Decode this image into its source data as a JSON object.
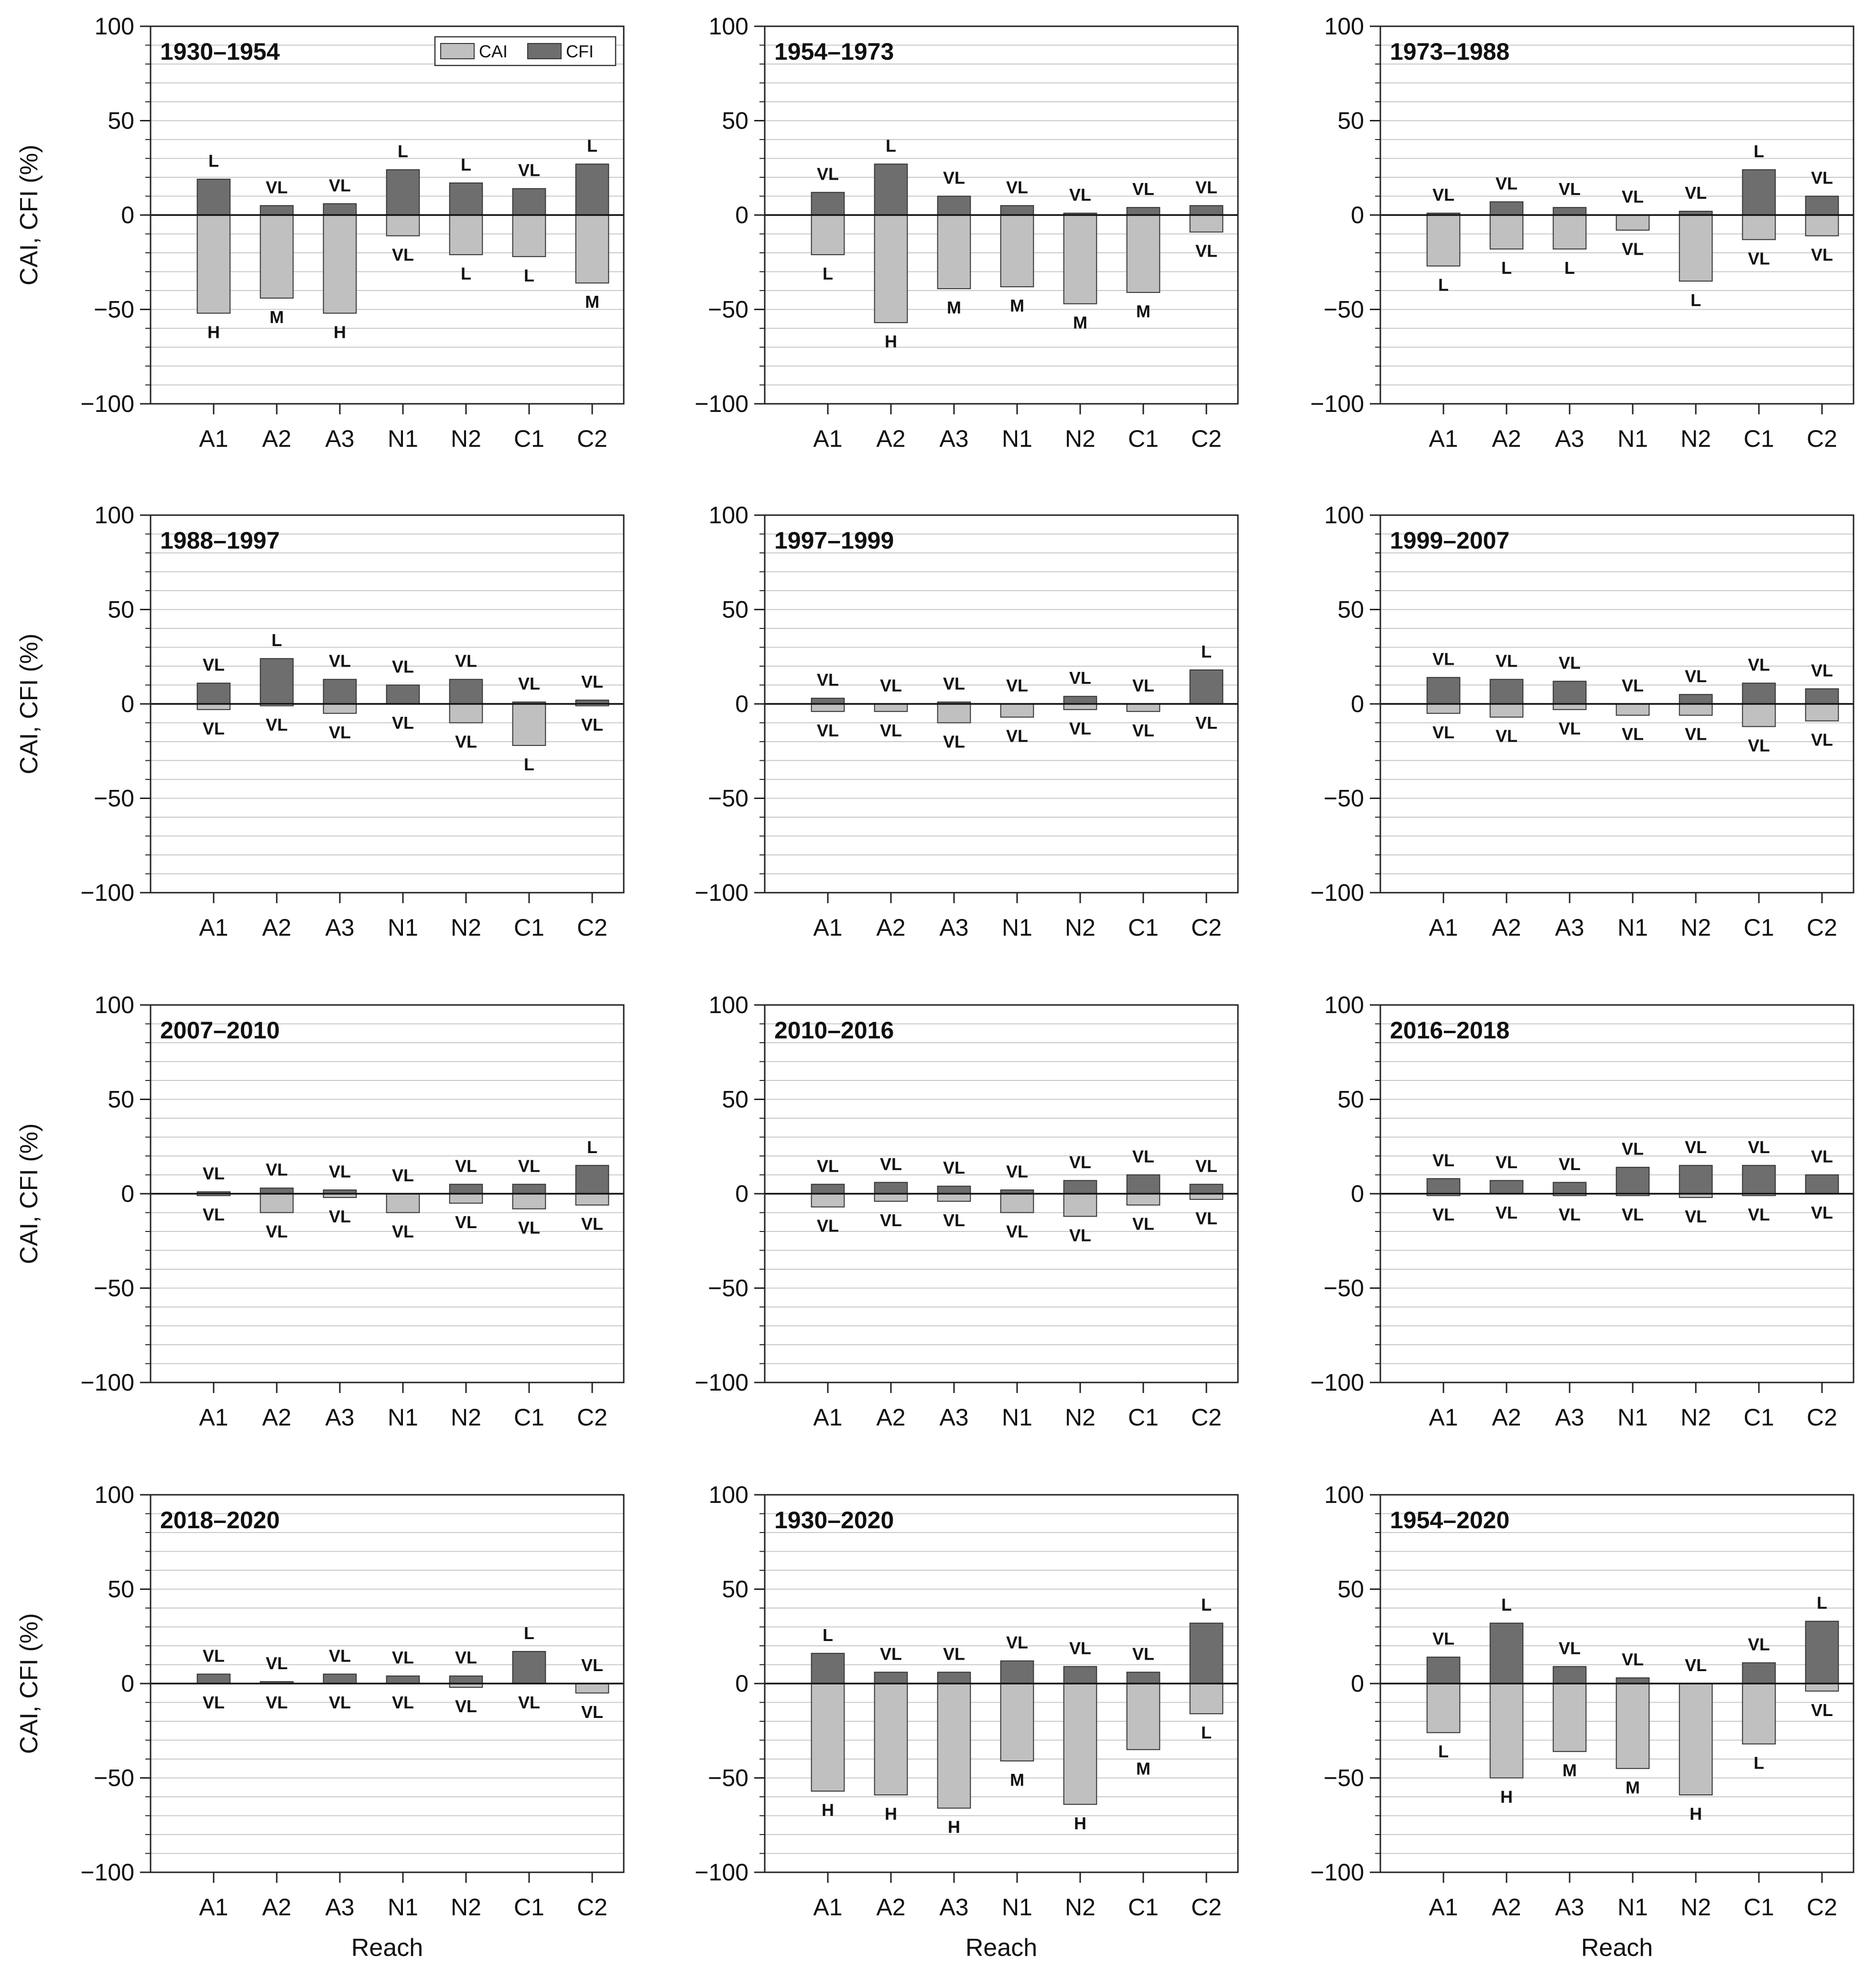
{
  "chart_data": {
    "type": "bar",
    "layout": "4x3 grid of small multiples",
    "xlabel": "Reach",
    "ylabel": "CAI, CFI (%)",
    "ylim": [
      -100,
      100
    ],
    "yticks": [
      -100,
      -50,
      0,
      50,
      100
    ],
    "ytick_labels": [
      "−100",
      "−50",
      "0",
      "50",
      "100"
    ],
    "minor_gridline_step": 10,
    "grid": true,
    "categories": [
      "A1",
      "A2",
      "A3",
      "N1",
      "N2",
      "C1",
      "C2"
    ],
    "legend": {
      "placement": "top-right of first panel",
      "entries": [
        {
          "name": "CAI",
          "color": "#c0c0c0"
        },
        {
          "name": "CFI",
          "color": "#6e6e6e"
        }
      ]
    },
    "colors": {
      "CAI": "#c0c0c0",
      "CFI": "#6e6e6e",
      "grid": "#c8c8c8",
      "axis": "#222222"
    },
    "panels": [
      {
        "title": "1930–1954",
        "series": [
          {
            "name": "CFI",
            "values": [
              19,
              5,
              6,
              24,
              17,
              14,
              27
            ],
            "labels": [
              "L",
              "VL",
              "VL",
              "L",
              "L",
              "VL",
              "L"
            ]
          },
          {
            "name": "CAI",
            "values": [
              -52,
              -44,
              -52,
              -11,
              -21,
              -22,
              -36
            ],
            "labels": [
              "H",
              "M",
              "H",
              "VL",
              "L",
              "L",
              "M"
            ]
          }
        ]
      },
      {
        "title": "1954–1973",
        "series": [
          {
            "name": "CFI",
            "values": [
              12,
              27,
              10,
              5,
              1,
              4,
              5
            ],
            "labels": [
              "VL",
              "L",
              "VL",
              "VL",
              "VL",
              "VL",
              "VL"
            ]
          },
          {
            "name": "CAI",
            "values": [
              -21,
              -57,
              -39,
              -38,
              -47,
              -41,
              -9
            ],
            "labels": [
              "L",
              "H",
              "M",
              "M",
              "M",
              "M",
              "VL"
            ]
          }
        ]
      },
      {
        "title": "1973–1988",
        "series": [
          {
            "name": "CFI",
            "values": [
              1,
              7,
              4,
              0,
              2,
              24,
              10
            ],
            "labels": [
              "VL",
              "VL",
              "VL",
              "VL",
              "VL",
              "L",
              "VL"
            ]
          },
          {
            "name": "CAI",
            "values": [
              -27,
              -18,
              -18,
              -8,
              -35,
              -13,
              -11
            ],
            "labels": [
              "L",
              "L",
              "L",
              "VL",
              "L",
              "VL",
              "VL"
            ]
          }
        ]
      },
      {
        "title": "1988–1997",
        "series": [
          {
            "name": "CFI",
            "values": [
              11,
              24,
              13,
              10,
              13,
              1,
              2
            ],
            "labels": [
              "VL",
              "L",
              "VL",
              "VL",
              "VL",
              "VL",
              "VL"
            ]
          },
          {
            "name": "CAI",
            "values": [
              -3,
              -1,
              -5,
              0,
              -10,
              -22,
              -1
            ],
            "labels": [
              "VL",
              "VL",
              "VL",
              "VL",
              "VL",
              "L",
              "VL"
            ]
          }
        ]
      },
      {
        "title": "1997–1999",
        "series": [
          {
            "name": "CFI",
            "values": [
              3,
              0,
              1,
              0,
              4,
              0,
              18
            ],
            "labels": [
              "VL",
              "VL",
              "VL",
              "VL",
              "VL",
              "VL",
              "L"
            ]
          },
          {
            "name": "CAI",
            "values": [
              -4,
              -4,
              -10,
              -7,
              -3,
              -4,
              0
            ],
            "labels": [
              "VL",
              "VL",
              "VL",
              "VL",
              "VL",
              "VL",
              "VL"
            ]
          }
        ]
      },
      {
        "title": "1999–2007",
        "series": [
          {
            "name": "CFI",
            "values": [
              14,
              13,
              12,
              0,
              5,
              11,
              8
            ],
            "labels": [
              "VL",
              "VL",
              "VL",
              "VL",
              "VL",
              "VL",
              "VL"
            ]
          },
          {
            "name": "CAI",
            "values": [
              -5,
              -7,
              -3,
              -6,
              -6,
              -12,
              -9
            ],
            "labels": [
              "VL",
              "VL",
              "VL",
              "VL",
              "VL",
              "VL",
              "VL"
            ]
          }
        ]
      },
      {
        "title": "2007–2010",
        "series": [
          {
            "name": "CFI",
            "values": [
              1,
              3,
              2,
              0,
              5,
              5,
              15
            ],
            "labels": [
              "VL",
              "VL",
              "VL",
              "VL",
              "VL",
              "VL",
              "L"
            ]
          },
          {
            "name": "CAI",
            "values": [
              -1,
              -10,
              -2,
              -10,
              -5,
              -8,
              -6
            ],
            "labels": [
              "VL",
              "VL",
              "VL",
              "VL",
              "VL",
              "VL",
              "VL"
            ]
          }
        ]
      },
      {
        "title": "2010–2016",
        "series": [
          {
            "name": "CFI",
            "values": [
              5,
              6,
              4,
              2,
              7,
              10,
              5
            ],
            "labels": [
              "VL",
              "VL",
              "VL",
              "VL",
              "VL",
              "VL",
              "VL"
            ]
          },
          {
            "name": "CAI",
            "values": [
              -7,
              -4,
              -4,
              -10,
              -12,
              -6,
              -3
            ],
            "labels": [
              "VL",
              "VL",
              "VL",
              "VL",
              "VL",
              "VL",
              "VL"
            ]
          }
        ]
      },
      {
        "title": "2016–2018",
        "series": [
          {
            "name": "CFI",
            "values": [
              8,
              7,
              6,
              14,
              15,
              15,
              10
            ],
            "labels": [
              "VL",
              "VL",
              "VL",
              "VL",
              "VL",
              "VL",
              "VL"
            ]
          },
          {
            "name": "CAI",
            "values": [
              -1,
              0,
              -1,
              -1,
              -2,
              -1,
              0
            ],
            "labels": [
              "VL",
              "VL",
              "VL",
              "VL",
              "VL",
              "VL",
              "VL"
            ]
          }
        ]
      },
      {
        "title": "2018–2020",
        "series": [
          {
            "name": "CFI",
            "values": [
              5,
              1,
              5,
              4,
              4,
              17,
              0
            ],
            "labels": [
              "VL",
              "VL",
              "VL",
              "VL",
              "VL",
              "L",
              "VL"
            ]
          },
          {
            "name": "CAI",
            "values": [
              0,
              0,
              0,
              0,
              -2,
              0,
              -5
            ],
            "labels": [
              "VL",
              "VL",
              "VL",
              "VL",
              "VL",
              "VL",
              "VL"
            ]
          }
        ]
      },
      {
        "title": "1930–2020",
        "series": [
          {
            "name": "CFI",
            "values": [
              16,
              6,
              6,
              12,
              9,
              6,
              32
            ],
            "labels": [
              "L",
              "VL",
              "VL",
              "VL",
              "VL",
              "VL",
              "L"
            ]
          },
          {
            "name": "CAI",
            "values": [
              -57,
              -59,
              -66,
              -41,
              -64,
              -35,
              -16
            ],
            "labels": [
              "H",
              "H",
              "H",
              "M",
              "H",
              "M",
              "L"
            ]
          }
        ]
      },
      {
        "title": "1954–2020",
        "series": [
          {
            "name": "CFI",
            "values": [
              14,
              32,
              9,
              3,
              0,
              11,
              33
            ],
            "labels": [
              "VL",
              "L",
              "VL",
              "VL",
              "VL",
              "VL",
              "L"
            ]
          },
          {
            "name": "CAI",
            "values": [
              -26,
              -50,
              -36,
              -45,
              -59,
              -32,
              -4
            ],
            "labels": [
              "L",
              "H",
              "M",
              "M",
              "H",
              "L",
              "VL"
            ]
          }
        ]
      }
    ]
  }
}
